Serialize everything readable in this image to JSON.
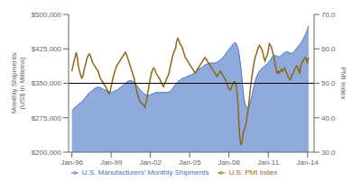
{
  "chart_data": {
    "type": "area",
    "y_label": "Monthly Shipments\n(US$ in Millions)",
    "y2_label": "PMI Index",
    "xlim": [
      1995.75,
      2014.5
    ],
    "xticks": [
      {
        "value": 1996,
        "label": "Jan-96"
      },
      {
        "value": 1999,
        "label": "Jan-99"
      },
      {
        "value": 2002,
        "label": "Jan-02"
      },
      {
        "value": 2005,
        "label": "Jan-05"
      },
      {
        "value": 2008,
        "label": "Jan-08"
      },
      {
        "value": 2011,
        "label": "Jan-11"
      },
      {
        "value": 2014,
        "label": "Jan-14"
      }
    ],
    "ylim": [
      200000,
      500000
    ],
    "yticks": [
      {
        "value": 200000,
        "label": "$200,000"
      },
      {
        "value": 275000,
        "label": "$275,000"
      },
      {
        "value": 350000,
        "label": "$350,000"
      },
      {
        "value": 425000,
        "label": "$425,000"
      },
      {
        "value": 500000,
        "label": "$500,000"
      }
    ],
    "y2lim": [
      30,
      70
    ],
    "y2ticks": [
      {
        "value": 30.0,
        "label": "30.0"
      },
      {
        "value": 40.0,
        "label": "40.0"
      },
      {
        "value": 50.0,
        "label": "50.0"
      },
      {
        "value": 60.0,
        "label": "60.0"
      },
      {
        "value": 70.0,
        "label": "70.0"
      }
    ],
    "grid": false,
    "legend": "bottom",
    "reference_line": {
      "y": 350000,
      "color": "#000000"
    },
    "x": [
      1996.0,
      1996.083,
      1996.167,
      1996.25,
      1996.333,
      1996.417,
      1996.5,
      1996.583,
      1996.667,
      1996.75,
      1996.833,
      1996.917,
      1997.0,
      1997.083,
      1997.167,
      1997.25,
      1997.333,
      1997.417,
      1997.5,
      1997.583,
      1997.667,
      1997.75,
      1997.833,
      1997.917,
      1998.0,
      1998.083,
      1998.167,
      1998.25,
      1998.333,
      1998.417,
      1998.5,
      1998.583,
      1998.667,
      1998.75,
      1998.833,
      1998.917,
      1999.0,
      1999.083,
      1999.167,
      1999.25,
      1999.333,
      1999.417,
      1999.5,
      1999.583,
      1999.667,
      1999.75,
      1999.833,
      1999.917,
      2000.0,
      2000.083,
      2000.167,
      2000.25,
      2000.333,
      2000.417,
      2000.5,
      2000.583,
      2000.667,
      2000.75,
      2000.833,
      2000.917,
      2001.0,
      2001.083,
      2001.167,
      2001.25,
      2001.333,
      2001.417,
      2001.5,
      2001.583,
      2001.667,
      2001.75,
      2001.833,
      2001.917,
      2002.0,
      2002.083,
      2002.167,
      2002.25,
      2002.333,
      2002.417,
      2002.5,
      2002.583,
      2002.667,
      2002.75,
      2002.833,
      2002.917,
      2003.0,
      2003.083,
      2003.167,
      2003.25,
      2003.333,
      2003.417,
      2003.5,
      2003.583,
      2003.667,
      2003.75,
      2003.833,
      2003.917,
      2004.0,
      2004.083,
      2004.167,
      2004.25,
      2004.333,
      2004.417,
      2004.5,
      2004.583,
      2004.667,
      2004.75,
      2004.833,
      2004.917,
      2005.0,
      2005.083,
      2005.167,
      2005.25,
      2005.333,
      2005.417,
      2005.5,
      2005.583,
      2005.667,
      2005.75,
      2005.833,
      2005.917,
      2006.0,
      2006.083,
      2006.167,
      2006.25,
      2006.333,
      2006.417,
      2006.5,
      2006.583,
      2006.667,
      2006.75,
      2006.833,
      2006.917,
      2007.0,
      2007.083,
      2007.167,
      2007.25,
      2007.333,
      2007.417,
      2007.5,
      2007.583,
      2007.667,
      2007.75,
      2007.833,
      2007.917,
      2008.0,
      2008.083,
      2008.167,
      2008.25,
      2008.333,
      2008.417,
      2008.5,
      2008.583,
      2008.667,
      2008.75,
      2008.833,
      2008.917,
      2009.0,
      2009.083,
      2009.167,
      2009.25,
      2009.333,
      2009.417,
      2009.5,
      2009.583,
      2009.667,
      2009.75,
      2009.833,
      2009.917,
      2010.0,
      2010.083,
      2010.167,
      2010.25,
      2010.333,
      2010.417,
      2010.5,
      2010.583,
      2010.667,
      2010.75,
      2010.833,
      2010.917,
      2011.0,
      2011.083,
      2011.167,
      2011.25,
      2011.333,
      2011.417,
      2011.5,
      2011.583,
      2011.667,
      2011.75,
      2011.833,
      2011.917,
      2012.0,
      2012.083,
      2012.167,
      2012.25,
      2012.333,
      2012.417,
      2012.5,
      2012.583,
      2012.667,
      2012.75,
      2012.833,
      2012.917,
      2013.0,
      2013.083,
      2013.167,
      2013.25,
      2013.333,
      2013.417,
      2013.5,
      2013.583,
      2013.667,
      2013.75,
      2013.833,
      2013.917,
      2014.0,
      2014.083
    ],
    "series": [
      {
        "name": "U.S. Manufacturers' Monthly Shipments",
        "type": "area",
        "color": "#4472C4",
        "values": [
          290000,
          292000,
          295000,
          298000,
          300000,
          302000,
          304000,
          306000,
          308000,
          310000,
          312000,
          315000,
          318000,
          321000,
          324000,
          327000,
          329000,
          331000,
          333000,
          335000,
          337000,
          339000,
          340000,
          341000,
          342000,
          341000,
          340000,
          339000,
          338000,
          337000,
          336000,
          335000,
          334000,
          333000,
          332000,
          331000,
          330000,
          331000,
          332000,
          333000,
          334000,
          335000,
          336000,
          338000,
          340000,
          342000,
          344000,
          346000,
          348000,
          350000,
          352000,
          354000,
          355000,
          356000,
          356000,
          355000,
          354000,
          352000,
          350000,
          347000,
          344000,
          341000,
          338000,
          335000,
          332000,
          330000,
          328000,
          326000,
          325000,
          324000,
          324000,
          324000,
          325000,
          326000,
          327000,
          328000,
          329000,
          330000,
          330000,
          330000,
          330000,
          330000,
          330000,
          330000,
          330000,
          330000,
          330000,
          330000,
          330000,
          331000,
          333000,
          335000,
          338000,
          341000,
          344000,
          347000,
          350000,
          353000,
          355000,
          357000,
          359000,
          360000,
          361000,
          362000,
          363000,
          364000,
          365000,
          366000,
          367000,
          368000,
          369000,
          370000,
          372000,
          374000,
          376000,
          378000,
          380000,
          382000,
          383000,
          384000,
          386000,
          388000,
          390000,
          391000,
          392000,
          393000,
          394000,
          394000,
          394000,
          394000,
          394000,
          394000,
          395000,
          396000,
          397000,
          399000,
          401000,
          403000,
          405000,
          408000,
          411000,
          414000,
          418000,
          421000,
          424000,
          427000,
          430000,
          433000,
          436000,
          438000,
          438000,
          435000,
          428000,
          418000,
          402000,
          382000,
          358000,
          332000,
          314000,
          303000,
          298000,
          297000,
          299000,
          305000,
          313000,
          322000,
          333000,
          344000,
          354000,
          362000,
          368000,
          373000,
          377000,
          380000,
          382000,
          384000,
          386000,
          388000,
          390000,
          392000,
          395000,
          398000,
          401000,
          405000,
          408000,
          410000,
          411000,
          410000,
          409000,
          407000,
          408000,
          409000,
          411000,
          413000,
          415000,
          417000,
          418000,
          419000,
          418000,
          417000,
          416000,
          415000,
          416000,
          418000,
          420000,
          423000,
          426000,
          429000,
          432000,
          435000,
          438000,
          442000,
          446000,
          451000,
          456000,
          461000,
          468000,
          475000
        ]
      },
      {
        "name": "U.S. PMI Index",
        "type": "line",
        "color": "#8B6914",
        "axis": "y2",
        "values": [
          53.5,
          55.0,
          56.5,
          57.5,
          59.0,
          57.5,
          55.0,
          53.5,
          52.5,
          51.5,
          52.0,
          53.5,
          55.0,
          56.0,
          57.5,
          58.0,
          58.5,
          58.0,
          57.0,
          56.0,
          55.5,
          55.0,
          54.5,
          54.0,
          53.5,
          52.5,
          51.5,
          51.0,
          50.5,
          50.0,
          49.5,
          49.0,
          48.5,
          47.5,
          47.0,
          47.5,
          49.0,
          50.5,
          52.0,
          53.0,
          54.0,
          55.0,
          55.5,
          56.0,
          56.5,
          57.0,
          57.5,
          58.0,
          58.5,
          59.0,
          58.5,
          57.5,
          56.5,
          55.5,
          54.5,
          53.5,
          52.5,
          51.5,
          50.0,
          48.5,
          47.0,
          46.0,
          45.0,
          44.5,
          44.0,
          44.0,
          43.5,
          43.0,
          44.5,
          46.0,
          48.0,
          50.0,
          51.5,
          53.0,
          54.0,
          54.5,
          54.0,
          53.0,
          52.5,
          52.0,
          51.5,
          51.0,
          50.0,
          49.5,
          49.0,
          50.0,
          50.5,
          51.5,
          52.0,
          53.0,
          54.5,
          56.0,
          57.5,
          58.5,
          59.5,
          60.0,
          62.0,
          63.0,
          62.5,
          61.5,
          61.0,
          60.5,
          59.5,
          58.5,
          57.5,
          57.0,
          56.5,
          56.0,
          55.5,
          55.0,
          54.5,
          54.0,
          53.5,
          53.0,
          53.5,
          54.0,
          54.5,
          55.0,
          55.5,
          56.0,
          56.5,
          57.0,
          57.5,
          57.0,
          56.5,
          56.0,
          55.5,
          55.0,
          54.5,
          54.0,
          53.5,
          53.0,
          52.5,
          52.0,
          52.5,
          53.0,
          53.5,
          53.0,
          52.5,
          52.0,
          51.5,
          51.0,
          50.0,
          49.0,
          48.5,
          48.0,
          48.5,
          49.5,
          50.0,
          50.5,
          50.0,
          48.5,
          45.0,
          39.0,
          34.0,
          32.0,
          33.0,
          35.5,
          36.5,
          37.5,
          39.0,
          41.0,
          43.5,
          46.5,
          49.5,
          52.0,
          54.0,
          56.0,
          57.5,
          58.5,
          59.5,
          60.5,
          61.0,
          60.5,
          60.0,
          59.0,
          57.5,
          56.5,
          57.5,
          58.0,
          59.5,
          61.5,
          61.0,
          60.5,
          59.0,
          58.0,
          56.0,
          54.5,
          53.0,
          53.5,
          53.0,
          53.5,
          54.0,
          53.5,
          54.0,
          54.5,
          53.5,
          53.0,
          52.0,
          51.5,
          51.0,
          51.5,
          52.5,
          53.0,
          54.0,
          54.5,
          55.0,
          54.5,
          53.5,
          53.0,
          55.5,
          56.0,
          56.5,
          57.0,
          57.5,
          57.0,
          56.0,
          57.5
        ]
      }
    ]
  }
}
